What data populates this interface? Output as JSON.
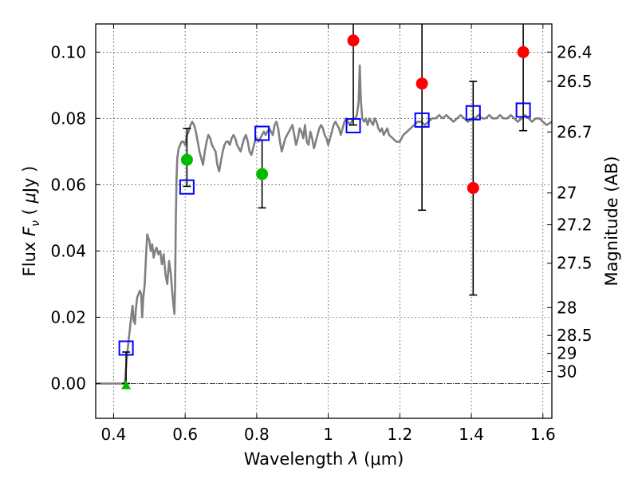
{
  "chart_data": {
    "type": "scatter",
    "title": "",
    "xlabel": "Wavelength  λ (μm)",
    "ylabel": "Flux  F_ν  ( μJy )",
    "ylabel_parts": {
      "prefix": "Flux ",
      "symbol": "F",
      "subscript": "ν",
      "unit_open": " ( ",
      "unit_mu": "μ",
      "unit_rest": "Jy )"
    },
    "xlabel_parts": {
      "prefix": "Wavelength  ",
      "lambda": "λ",
      "unit": " (μm)"
    },
    "right_ylabel": "Magnitude (AB)",
    "xlim": [
      0.35,
      1.625
    ],
    "ylim": [
      -0.0105,
      0.1085
    ],
    "grid": true,
    "x_ticks": [
      {
        "value": 0.4,
        "label": "0.4"
      },
      {
        "value": 0.6,
        "label": "0.6"
      },
      {
        "value": 0.8,
        "label": "0.8"
      },
      {
        "value": 1.0,
        "label": "1"
      },
      {
        "value": 1.2,
        "label": "1.2"
      },
      {
        "value": 1.4,
        "label": "1.4"
      },
      {
        "value": 1.6,
        "label": "1.6"
      }
    ],
    "y_ticks": [
      {
        "value": 0.0,
        "label": "0.00"
      },
      {
        "value": 0.02,
        "label": "0.02"
      },
      {
        "value": 0.04,
        "label": "0.04"
      },
      {
        "value": 0.06,
        "label": "0.06"
      },
      {
        "value": 0.08,
        "label": "0.08"
      },
      {
        "value": 0.1,
        "label": "0.10"
      }
    ],
    "mag_ticks": [
      {
        "label": "26.4",
        "flux": 0.1
      },
      {
        "label": "26.5",
        "flux": 0.0912
      },
      {
        "label": "26.7",
        "flux": 0.0759
      },
      {
        "label": "27",
        "flux": 0.0575
      },
      {
        "label": "27.2",
        "flux": 0.0479
      },
      {
        "label": "27.5",
        "flux": 0.0363
      },
      {
        "label": "28",
        "flux": 0.0229
      },
      {
        "label": "28.5",
        "flux": 0.0145
      },
      {
        "label": "29",
        "flux": 0.0091
      },
      {
        "label": "30",
        "flux": 0.0036
      }
    ],
    "series": [
      {
        "name": "model spectrum",
        "kind": "line",
        "color": "#808080",
        "points": [
          [
            0.35,
            0.0
          ],
          [
            0.43,
            0.0
          ],
          [
            0.432,
            0.001
          ],
          [
            0.435,
            0.005
          ],
          [
            0.438,
            0.009
          ],
          [
            0.442,
            0.013
          ],
          [
            0.446,
            0.017
          ],
          [
            0.45,
            0.021
          ],
          [
            0.453,
            0.0235
          ],
          [
            0.456,
            0.019
          ],
          [
            0.46,
            0.018
          ],
          [
            0.462,
            0.022
          ],
          [
            0.466,
            0.026
          ],
          [
            0.47,
            0.027
          ],
          [
            0.473,
            0.028
          ],
          [
            0.477,
            0.027
          ],
          [
            0.48,
            0.02
          ],
          [
            0.483,
            0.026
          ],
          [
            0.487,
            0.03
          ],
          [
            0.49,
            0.037
          ],
          [
            0.494,
            0.045
          ],
          [
            0.5,
            0.043
          ],
          [
            0.504,
            0.04
          ],
          [
            0.508,
            0.042
          ],
          [
            0.512,
            0.038
          ],
          [
            0.516,
            0.04
          ],
          [
            0.52,
            0.041
          ],
          [
            0.525,
            0.039
          ],
          [
            0.53,
            0.04
          ],
          [
            0.535,
            0.036
          ],
          [
            0.54,
            0.039
          ],
          [
            0.545,
            0.033
          ],
          [
            0.55,
            0.03
          ],
          [
            0.555,
            0.037
          ],
          [
            0.56,
            0.033
          ],
          [
            0.565,
            0.026
          ],
          [
            0.57,
            0.021
          ],
          [
            0.572,
            0.03
          ],
          [
            0.574,
            0.05
          ],
          [
            0.576,
            0.062
          ],
          [
            0.578,
            0.068
          ],
          [
            0.582,
            0.071
          ],
          [
            0.586,
            0.072
          ],
          [
            0.59,
            0.073
          ],
          [
            0.595,
            0.073
          ],
          [
            0.6,
            0.072
          ],
          [
            0.605,
            0.075
          ],
          [
            0.61,
            0.076
          ],
          [
            0.615,
            0.078
          ],
          [
            0.62,
            0.079
          ],
          [
            0.625,
            0.078
          ],
          [
            0.63,
            0.076
          ],
          [
            0.635,
            0.073
          ],
          [
            0.64,
            0.07
          ],
          [
            0.645,
            0.068
          ],
          [
            0.65,
            0.066
          ],
          [
            0.655,
            0.07
          ],
          [
            0.66,
            0.073
          ],
          [
            0.665,
            0.075
          ],
          [
            0.67,
            0.074
          ],
          [
            0.675,
            0.072
          ],
          [
            0.68,
            0.071
          ],
          [
            0.685,
            0.07
          ],
          [
            0.69,
            0.066
          ],
          [
            0.695,
            0.064
          ],
          [
            0.7,
            0.067
          ],
          [
            0.705,
            0.07
          ],
          [
            0.71,
            0.072
          ],
          [
            0.715,
            0.073
          ],
          [
            0.72,
            0.073
          ],
          [
            0.725,
            0.072
          ],
          [
            0.73,
            0.074
          ],
          [
            0.735,
            0.075
          ],
          [
            0.74,
            0.074
          ],
          [
            0.745,
            0.072
          ],
          [
            0.75,
            0.071
          ],
          [
            0.755,
            0.07
          ],
          [
            0.76,
            0.072
          ],
          [
            0.765,
            0.074
          ],
          [
            0.77,
            0.075
          ],
          [
            0.775,
            0.073
          ],
          [
            0.78,
            0.07
          ],
          [
            0.785,
            0.069
          ],
          [
            0.79,
            0.071
          ],
          [
            0.795,
            0.073
          ],
          [
            0.8,
            0.074
          ],
          [
            0.805,
            0.073
          ],
          [
            0.81,
            0.074
          ],
          [
            0.815,
            0.075
          ],
          [
            0.82,
            0.076
          ],
          [
            0.825,
            0.075
          ],
          [
            0.83,
            0.076
          ],
          [
            0.835,
            0.077
          ],
          [
            0.84,
            0.076
          ],
          [
            0.845,
            0.075
          ],
          [
            0.85,
            0.078
          ],
          [
            0.855,
            0.079
          ],
          [
            0.86,
            0.077
          ],
          [
            0.865,
            0.073
          ],
          [
            0.87,
            0.07
          ],
          [
            0.875,
            0.072
          ],
          [
            0.88,
            0.074
          ],
          [
            0.885,
            0.075
          ],
          [
            0.89,
            0.076
          ],
          [
            0.895,
            0.077
          ],
          [
            0.9,
            0.078
          ],
          [
            0.905,
            0.075
          ],
          [
            0.91,
            0.072
          ],
          [
            0.915,
            0.074
          ],
          [
            0.92,
            0.077
          ],
          [
            0.925,
            0.076
          ],
          [
            0.93,
            0.074
          ],
          [
            0.935,
            0.078
          ],
          [
            0.94,
            0.073
          ],
          [
            0.945,
            0.072
          ],
          [
            0.95,
            0.076
          ],
          [
            0.955,
            0.074
          ],
          [
            0.96,
            0.071
          ],
          [
            0.965,
            0.073
          ],
          [
            0.97,
            0.075
          ],
          [
            0.975,
            0.077
          ],
          [
            0.98,
            0.078
          ],
          [
            0.985,
            0.077
          ],
          [
            0.99,
            0.075
          ],
          [
            0.995,
            0.074
          ],
          [
            1.0,
            0.072
          ],
          [
            1.005,
            0.074
          ],
          [
            1.01,
            0.076
          ],
          [
            1.015,
            0.078
          ],
          [
            1.02,
            0.079
          ],
          [
            1.025,
            0.078
          ],
          [
            1.03,
            0.077
          ],
          [
            1.035,
            0.075
          ],
          [
            1.04,
            0.077
          ],
          [
            1.045,
            0.079
          ],
          [
            1.05,
            0.08
          ],
          [
            1.055,
            0.079
          ],
          [
            1.06,
            0.078
          ],
          [
            1.065,
            0.079
          ],
          [
            1.07,
            0.08
          ],
          [
            1.075,
            0.08
          ],
          [
            1.08,
            0.081
          ],
          [
            1.085,
            0.085
          ],
          [
            1.088,
            0.096
          ],
          [
            1.091,
            0.086
          ],
          [
            1.095,
            0.08
          ],
          [
            1.1,
            0.079
          ],
          [
            1.105,
            0.08
          ],
          [
            1.11,
            0.078
          ],
          [
            1.115,
            0.08
          ],
          [
            1.12,
            0.079
          ],
          [
            1.125,
            0.078
          ],
          [
            1.13,
            0.08
          ],
          [
            1.135,
            0.079
          ],
          [
            1.14,
            0.077
          ],
          [
            1.145,
            0.076
          ],
          [
            1.15,
            0.077
          ],
          [
            1.155,
            0.075
          ],
          [
            1.16,
            0.076
          ],
          [
            1.165,
            0.077
          ],
          [
            1.17,
            0.075
          ],
          [
            1.18,
            0.074
          ],
          [
            1.19,
            0.073
          ],
          [
            1.2,
            0.073
          ],
          [
            1.21,
            0.075
          ],
          [
            1.22,
            0.076
          ],
          [
            1.23,
            0.077
          ],
          [
            1.24,
            0.078
          ],
          [
            1.25,
            0.079
          ],
          [
            1.26,
            0.079
          ],
          [
            1.27,
            0.078
          ],
          [
            1.28,
            0.079
          ],
          [
            1.29,
            0.08
          ],
          [
            1.3,
            0.08
          ],
          [
            1.31,
            0.081
          ],
          [
            1.32,
            0.08
          ],
          [
            1.33,
            0.081
          ],
          [
            1.34,
            0.08
          ],
          [
            1.35,
            0.079
          ],
          [
            1.36,
            0.08
          ],
          [
            1.37,
            0.081
          ],
          [
            1.38,
            0.08
          ],
          [
            1.39,
            0.079
          ],
          [
            1.4,
            0.08
          ],
          [
            1.41,
            0.08
          ],
          [
            1.42,
            0.081
          ],
          [
            1.43,
            0.08
          ],
          [
            1.44,
            0.08
          ],
          [
            1.45,
            0.081
          ],
          [
            1.46,
            0.08
          ],
          [
            1.47,
            0.08
          ],
          [
            1.48,
            0.081
          ],
          [
            1.49,
            0.08
          ],
          [
            1.5,
            0.08
          ],
          [
            1.51,
            0.081
          ],
          [
            1.52,
            0.08
          ],
          [
            1.53,
            0.079
          ],
          [
            1.54,
            0.08
          ],
          [
            1.55,
            0.081
          ],
          [
            1.56,
            0.08
          ],
          [
            1.57,
            0.079
          ],
          [
            1.58,
            0.08
          ],
          [
            1.59,
            0.08
          ],
          [
            1.6,
            0.079
          ],
          [
            1.61,
            0.078
          ],
          [
            1.625,
            0.079
          ]
        ]
      },
      {
        "name": "observed flux with errors",
        "kind": "errorbar",
        "color": "#000000",
        "points": [
          {
            "x": 0.435,
            "y": 0.0095,
            "lo": 0.0,
            "hi": 0.0095
          },
          {
            "x": 0.605,
            "y": 0.0675,
            "lo": 0.0595,
            "hi": 0.077
          },
          {
            "x": 0.815,
            "y": 0.0632,
            "lo": 0.053,
            "hi": 0.0735
          },
          {
            "x": 1.07,
            "y": 0.1035,
            "lo": 0.078,
            "hi": 0.1085
          },
          {
            "x": 1.262,
            "y": 0.0905,
            "lo": 0.0523,
            "hi": 0.1085
          },
          {
            "x": 1.405,
            "y": 0.059,
            "lo": 0.0267,
            "hi": 0.0912
          },
          {
            "x": 1.545,
            "y": 0.1,
            "lo": 0.0763,
            "hi": 0.1085
          }
        ]
      },
      {
        "name": "detections (green)",
        "kind": "circle",
        "color": "#00bb00",
        "points": [
          [
            0.605,
            0.0675
          ],
          [
            0.815,
            0.0632
          ]
        ]
      },
      {
        "name": "low-significance (red)",
        "kind": "circle",
        "color": "#ff0000",
        "points": [
          [
            1.07,
            0.1035
          ],
          [
            1.262,
            0.0905
          ],
          [
            1.405,
            0.059
          ],
          [
            1.545,
            0.1
          ]
        ]
      },
      {
        "name": "upper limit",
        "kind": "triangle",
        "color": "#00bb00",
        "points": [
          [
            0.435,
            -0.0005
          ]
        ]
      },
      {
        "name": "model photometry",
        "kind": "square",
        "color": "#0000ff",
        "points": [
          [
            0.435,
            0.0107
          ],
          [
            0.605,
            0.0593
          ],
          [
            0.815,
            0.0755
          ],
          [
            1.07,
            0.0778
          ],
          [
            1.262,
            0.0795
          ],
          [
            1.405,
            0.0817
          ],
          [
            1.545,
            0.0825
          ]
        ]
      }
    ]
  }
}
